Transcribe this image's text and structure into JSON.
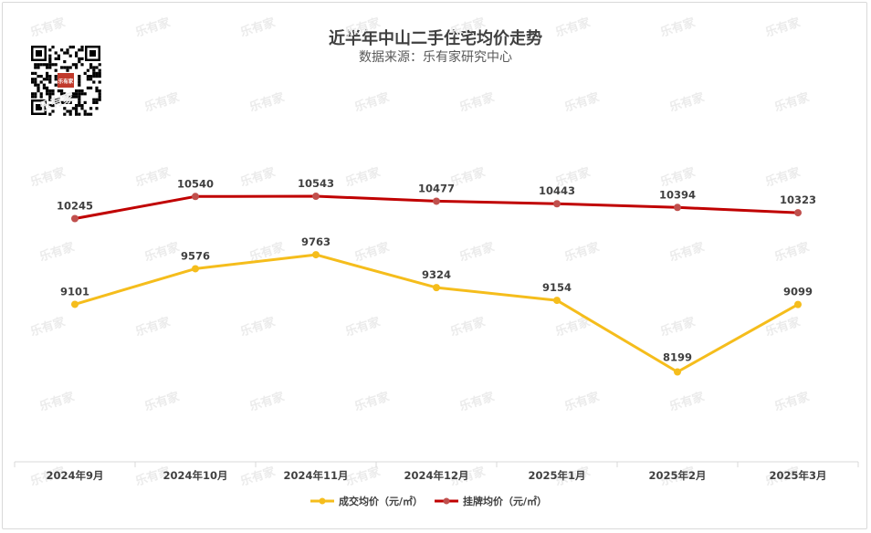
{
  "chart_data": {
    "type": "line",
    "title": "近半年中山二手住宅均价走势",
    "subtitle": "数据来源：乐有家研究中心",
    "categories": [
      "2024年9月",
      "2024年10月",
      "2024年11月",
      "2024年12月",
      "2025年1月",
      "2025年2月",
      "2025年3月"
    ],
    "series": [
      {
        "name": "成交均价（元/㎡）",
        "color": "#f5bd1c",
        "values": [
          9101,
          9576,
          9763,
          9324,
          9154,
          8199,
          9099
        ]
      },
      {
        "name": "挂牌均价（元/㎡）",
        "color": "#c00000",
        "values": [
          10245,
          10540,
          10543,
          10477,
          10443,
          10394,
          10323
        ]
      }
    ],
    "ylim": [
      7000,
      11700
    ],
    "grid": false,
    "legend_position": "bottom",
    "data_labels": true
  },
  "watermark": {
    "text": "乐有家"
  },
  "qr_code": {
    "center_text": "乐有家"
  }
}
